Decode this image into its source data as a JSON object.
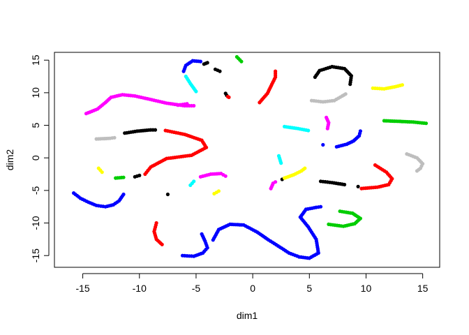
{
  "chart_data": {
    "type": "scatter",
    "title": "",
    "xlabel": "dim1",
    "ylabel": "dim2",
    "xlim": [
      -17.5,
      16.5
    ],
    "ylim": [
      -16.8,
      16.2
    ],
    "xticks": [
      -15,
      -10,
      -5,
      0,
      5,
      10,
      15
    ],
    "yticks": [
      -15,
      -10,
      -5,
      0,
      5,
      10,
      15
    ],
    "xtick_labels": [
      "-15",
      "-10",
      "-5",
      "0",
      "5",
      "10",
      "15"
    ],
    "ytick_labels": [
      "-15",
      "-10",
      "-5",
      "0",
      "5",
      "10",
      "15"
    ],
    "grid": false,
    "legend": "none",
    "series": [
      {
        "color": "#0000FF",
        "strokes": [
          [
            [
              -15.8,
              -5.4
            ],
            [
              -15.2,
              -6.2
            ],
            [
              -14.5,
              -6.8
            ],
            [
              -13.8,
              -7.3
            ],
            [
              -13.0,
              -7.5
            ],
            [
              -12.3,
              -7.2
            ],
            [
              -11.8,
              -6.6
            ],
            [
              -11.4,
              -5.6
            ]
          ],
          [
            [
              -6.1,
              13.3
            ],
            [
              -5.9,
              14.2
            ],
            [
              -5.3,
              14.9
            ],
            [
              -4.6,
              14.8
            ]
          ],
          [
            [
              6.2,
              2.0
            ]
          ],
          [
            [
              7.4,
              1.7
            ],
            [
              8.3,
              2.1
            ],
            [
              8.9,
              2.6
            ],
            [
              9.4,
              3.4
            ],
            [
              9.5,
              4.1
            ]
          ],
          [
            [
              -6.2,
              -15.0
            ],
            [
              -5.2,
              -15.1
            ],
            [
              -4.4,
              -14.6
            ],
            [
              -4.0,
              -13.8
            ],
            [
              -4.2,
              -12.8
            ],
            [
              -4.5,
              -11.7
            ]
          ],
          [
            [
              -3.5,
              -12.6
            ],
            [
              -3.0,
              -11.0
            ],
            [
              -2.0,
              -10.2
            ],
            [
              -0.8,
              -10.3
            ],
            [
              0.4,
              -11.4
            ],
            [
              1.4,
              -12.6
            ],
            [
              2.4,
              -13.7
            ],
            [
              3.2,
              -14.6
            ],
            [
              4.1,
              -15.2
            ],
            [
              5.0,
              -15.4
            ],
            [
              5.8,
              -14.6
            ],
            [
              5.6,
              -12.5
            ],
            [
              4.9,
              -10.6
            ],
            [
              4.2,
              -9.1
            ],
            [
              4.7,
              -7.9
            ],
            [
              5.6,
              -7.6
            ],
            [
              6.0,
              -7.5
            ]
          ]
        ]
      },
      {
        "color": "#00FFFF",
        "strokes": [
          [
            [
              -5.9,
              12.5
            ],
            [
              -5.5,
              11.4
            ],
            [
              -5.0,
              10.2
            ]
          ],
          [
            [
              2.8,
              4.8
            ],
            [
              4.0,
              4.5
            ],
            [
              4.9,
              4.2
            ]
          ],
          [
            [
              2.3,
              0.3
            ],
            [
              2.5,
              -0.8
            ]
          ],
          [
            [
              -5.5,
              -4.2
            ],
            [
              -5.2,
              -3.6
            ]
          ]
        ]
      },
      {
        "color": "#000000",
        "strokes": [
          [
            [
              -4.3,
              14.4
            ],
            [
              -4.0,
              14.6
            ]
          ],
          [
            [
              -3.3,
              13.6
            ],
            [
              -2.9,
              13.3
            ]
          ],
          [
            [
              -2.4,
              9.9
            ],
            [
              -2.3,
              9.6
            ]
          ],
          [
            [
              5.5,
              12.4
            ],
            [
              5.9,
              13.4
            ],
            [
              7.0,
              14.0
            ],
            [
              8.1,
              13.7
            ],
            [
              8.7,
              12.6
            ],
            [
              8.6,
              11.3
            ]
          ],
          [
            [
              -11.3,
              3.8
            ],
            [
              -10.2,
              4.1
            ],
            [
              -9.0,
              4.3
            ],
            [
              -8.6,
              4.3
            ]
          ],
          [
            [
              -10.4,
              -2.9
            ],
            [
              -10.0,
              -2.7
            ]
          ],
          [
            [
              -7.5,
              -5.6
            ]
          ],
          [
            [
              2.6,
              -3.3
            ]
          ],
          [
            [
              6.0,
              -3.6
            ],
            [
              7.0,
              -3.8
            ],
            [
              8.1,
              -4.1
            ]
          ],
          [
            [
              9.3,
              -4.4
            ]
          ]
        ]
      },
      {
        "color": "#00CD00",
        "strokes": [
          [
            [
              -1.4,
              15.5
            ],
            [
              -1.0,
              14.8
            ]
          ],
          [
            [
              11.6,
              5.7
            ],
            [
              13.0,
              5.6
            ],
            [
              14.2,
              5.5
            ],
            [
              15.3,
              5.3
            ]
          ],
          [
            [
              -12.1,
              -3.1
            ],
            [
              -11.4,
              -3.0
            ]
          ],
          [
            [
              7.7,
              -8.2
            ],
            [
              8.8,
              -8.5
            ],
            [
              9.5,
              -9.3
            ],
            [
              9.0,
              -10.1
            ],
            [
              8.0,
              -10.5
            ],
            [
              6.7,
              -10.2
            ]
          ]
        ]
      },
      {
        "color": "#FF0000",
        "strokes": [
          [
            [
              -2.2,
              9.4
            ],
            [
              -2.1,
              9.3
            ]
          ],
          [
            [
              0.6,
              8.5
            ],
            [
              1.3,
              9.9
            ],
            [
              2.0,
              12.4
            ],
            [
              2.0,
              13.3
            ]
          ],
          [
            [
              -7.7,
              4.2
            ],
            [
              -6.0,
              3.6
            ],
            [
              -4.5,
              2.7
            ],
            [
              -4.1,
              1.6
            ],
            [
              -5.4,
              0.4
            ],
            [
              -7.6,
              -0.1
            ],
            [
              -9.0,
              -1.4
            ],
            [
              -9.5,
              -2.5
            ]
          ],
          [
            [
              9.6,
              -4.7
            ],
            [
              11.0,
              -4.5
            ],
            [
              12.0,
              -4.1
            ],
            [
              12.3,
              -3.2
            ],
            [
              11.8,
              -2.2
            ],
            [
              10.8,
              -1.1
            ]
          ],
          [
            [
              -8.5,
              -10.0
            ],
            [
              -8.7,
              -11.3
            ],
            [
              -8.5,
              -12.5
            ],
            [
              -8.0,
              -13.3
            ]
          ]
        ]
      },
      {
        "color": "#FF00FF",
        "strokes": [
          [
            [
              -14.7,
              6.8
            ],
            [
              -13.7,
              7.5
            ],
            [
              -13.0,
              8.5
            ],
            [
              -12.5,
              9.3
            ],
            [
              -11.5,
              9.7
            ],
            [
              -10.4,
              9.5
            ],
            [
              -9.1,
              9.0
            ],
            [
              -7.6,
              8.4
            ],
            [
              -6.0,
              8.0
            ],
            [
              -5.2,
              8.0
            ]
          ],
          [
            [
              -6.6,
              8.1
            ],
            [
              -5.8,
              8.3
            ]
          ],
          [
            [
              6.5,
              6.2
            ],
            [
              6.7,
              5.4
            ],
            [
              6.6,
              4.5
            ]
          ],
          [
            [
              -4.6,
              -2.9
            ],
            [
              -3.7,
              -2.5
            ],
            [
              -2.8,
              -2.4
            ],
            [
              -2.4,
              -2.8
            ]
          ],
          [
            [
              1.6,
              -4.7
            ],
            [
              1.8,
              -3.9
            ],
            [
              2.0,
              -3.7
            ]
          ]
        ]
      },
      {
        "color": "#FFFF00",
        "strokes": [
          [
            [
              10.6,
              10.7
            ],
            [
              11.6,
              10.6
            ],
            [
              12.5,
              10.9
            ],
            [
              13.2,
              11.2
            ]
          ],
          [
            [
              -13.6,
              -1.6
            ],
            [
              -13.3,
              -2.2
            ]
          ],
          [
            [
              2.8,
              -3.1
            ],
            [
              3.6,
              -2.6
            ],
            [
              4.3,
              -2.0
            ],
            [
              4.6,
              -1.6
            ]
          ],
          [
            [
              -3.4,
              -5.5
            ],
            [
              -3.0,
              -5.1
            ]
          ]
        ]
      },
      {
        "color": "#BEBEBE",
        "strokes": [
          [
            [
              5.2,
              8.8
            ],
            [
              6.2,
              8.6
            ],
            [
              7.2,
              8.8
            ],
            [
              7.9,
              9.5
            ],
            [
              8.2,
              9.8
            ]
          ],
          [
            [
              -13.8,
              2.9
            ],
            [
              -12.6,
              3.0
            ],
            [
              -12.2,
              3.1
            ]
          ],
          [
            [
              13.6,
              0.6
            ],
            [
              14.5,
              0.0
            ],
            [
              15.0,
              -0.9
            ],
            [
              14.8,
              -1.6
            ],
            [
              14.5,
              -2.0
            ]
          ]
        ]
      }
    ]
  }
}
